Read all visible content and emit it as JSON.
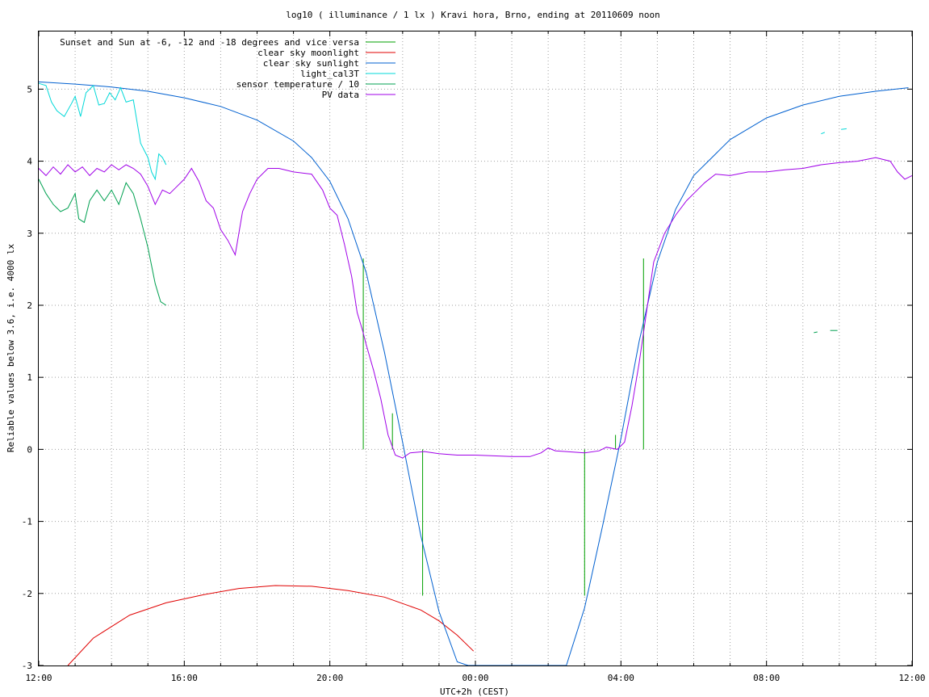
{
  "chart_data": {
    "type": "line",
    "title": "log10 ( illuminance / 1 lx ) Kravi hora, Brno, ending at 20110609 noon",
    "xlabel": "UTC+2h (CEST)",
    "ylabel": "Reliable values below 3.6, i.e. 4000 lx",
    "xlim": [
      12,
      36
    ],
    "ylim": [
      -3,
      5.8
    ],
    "grid": true,
    "legend_position": "top-left",
    "x_ticks": [
      {
        "value": 12,
        "label": "12:00"
      },
      {
        "value": 16,
        "label": "16:00"
      },
      {
        "value": 20,
        "label": "20:00"
      },
      {
        "value": 24,
        "label": "00:00"
      },
      {
        "value": 28,
        "label": "04:00"
      },
      {
        "value": 32,
        "label": "08:00"
      },
      {
        "value": 36,
        "label": "12:00"
      }
    ],
    "y_ticks": [
      {
        "value": 5,
        "label": "5"
      },
      {
        "value": 4,
        "label": "4"
      },
      {
        "value": 3,
        "label": "3"
      },
      {
        "value": 2,
        "label": "2"
      },
      {
        "value": 1,
        "label": "1"
      },
      {
        "value": 0,
        "label": "0"
      },
      {
        "value": -1,
        "label": "-1"
      },
      {
        "value": -2,
        "label": "-2"
      },
      {
        "value": -3,
        "label": "-3"
      }
    ],
    "series": [
      {
        "name": "Sunset and Sun at -6, -12 and -18 degrees and vice versa",
        "color": "#00a000",
        "style": "impulses",
        "points": [
          [
            20.92,
            2.65
          ],
          [
            21.72,
            0.5
          ],
          [
            22.55,
            -2.03
          ],
          [
            27.0,
            -2.03
          ],
          [
            27.85,
            0.2
          ],
          [
            28.62,
            2.65
          ]
        ]
      },
      {
        "name": "clear sky moonlight",
        "color": "#e00000",
        "points": [
          [
            12.8,
            -3.0
          ],
          [
            13.5,
            -2.62
          ],
          [
            14.5,
            -2.3
          ],
          [
            15.5,
            -2.13
          ],
          [
            16.5,
            -2.02
          ],
          [
            17.5,
            -1.93
          ],
          [
            18.5,
            -1.89
          ],
          [
            19.5,
            -1.9
          ],
          [
            20.5,
            -1.96
          ],
          [
            21.5,
            -2.05
          ],
          [
            22.5,
            -2.23
          ],
          [
            23.0,
            -2.38
          ],
          [
            23.5,
            -2.58
          ],
          [
            23.95,
            -2.8
          ]
        ]
      },
      {
        "name": "clear sky sunlight",
        "color": "#0060d0",
        "points": [
          [
            12.0,
            5.1
          ],
          [
            13.0,
            5.07
          ],
          [
            14.0,
            5.03
          ],
          [
            15.0,
            4.97
          ],
          [
            16.0,
            4.88
          ],
          [
            17.0,
            4.76
          ],
          [
            18.0,
            4.57
          ],
          [
            19.0,
            4.28
          ],
          [
            19.5,
            4.05
          ],
          [
            20.0,
            3.72
          ],
          [
            20.5,
            3.2
          ],
          [
            21.0,
            2.45
          ],
          [
            21.5,
            1.35
          ],
          [
            22.0,
            0.1
          ],
          [
            22.5,
            -1.2
          ],
          [
            23.0,
            -2.25
          ],
          [
            23.5,
            -2.95
          ],
          [
            23.8,
            -3.2
          ],
          [
            25.5,
            -3.2
          ],
          [
            26.5,
            -3.0
          ],
          [
            27.0,
            -2.2
          ],
          [
            27.5,
            -1.05
          ],
          [
            28.0,
            0.15
          ],
          [
            28.5,
            1.5
          ],
          [
            29.0,
            2.6
          ],
          [
            29.5,
            3.33
          ],
          [
            30.0,
            3.8
          ],
          [
            31.0,
            4.3
          ],
          [
            32.0,
            4.6
          ],
          [
            33.0,
            4.78
          ],
          [
            34.0,
            4.9
          ],
          [
            35.0,
            4.97
          ],
          [
            35.9,
            5.02
          ]
        ]
      },
      {
        "name": "light_cal3T",
        "color": "#00d8d8",
        "points": [
          [
            12.0,
            5.08
          ],
          [
            12.2,
            5.05
          ],
          [
            12.35,
            4.82
          ],
          [
            12.5,
            4.7
          ],
          [
            12.7,
            4.62
          ],
          [
            12.9,
            4.8
          ],
          [
            13.0,
            4.9
          ],
          [
            13.15,
            4.62
          ],
          [
            13.3,
            4.95
          ],
          [
            13.5,
            5.05
          ],
          [
            13.65,
            4.78
          ],
          [
            13.8,
            4.8
          ],
          [
            13.95,
            4.95
          ],
          [
            14.1,
            4.85
          ],
          [
            14.25,
            5.02
          ],
          [
            14.4,
            4.82
          ],
          [
            14.6,
            4.85
          ],
          [
            14.8,
            4.25
          ],
          [
            15.0,
            4.05
          ],
          [
            15.1,
            3.85
          ],
          [
            15.2,
            3.75
          ],
          [
            15.3,
            4.1
          ],
          [
            15.4,
            4.05
          ],
          [
            15.5,
            3.95
          ]
        ]
      },
      {
        "name": "light_cal3T",
        "color": "#00d8d8",
        "points": [
          [
            33.5,
            4.38
          ],
          [
            33.6,
            4.4
          ]
        ]
      },
      {
        "name": "light_cal3T",
        "color": "#00d8d8",
        "points": [
          [
            34.05,
            4.44
          ],
          [
            34.2,
            4.45
          ]
        ]
      },
      {
        "name": "sensor temperature / 10",
        "color": "#00a050",
        "points": [
          [
            12.0,
            3.75
          ],
          [
            12.2,
            3.55
          ],
          [
            12.4,
            3.4
          ],
          [
            12.6,
            3.3
          ],
          [
            12.8,
            3.35
          ],
          [
            13.0,
            3.55
          ],
          [
            13.1,
            3.2
          ],
          [
            13.25,
            3.15
          ],
          [
            13.4,
            3.45
          ],
          [
            13.6,
            3.6
          ],
          [
            13.8,
            3.45
          ],
          [
            14.0,
            3.6
          ],
          [
            14.2,
            3.4
          ],
          [
            14.4,
            3.7
          ],
          [
            14.6,
            3.55
          ],
          [
            14.8,
            3.2
          ],
          [
            15.0,
            2.8
          ],
          [
            15.2,
            2.3
          ],
          [
            15.35,
            2.05
          ],
          [
            15.5,
            2.0
          ]
        ]
      },
      {
        "name": "sensor temperature / 10",
        "color": "#00a050",
        "points": [
          [
            33.3,
            1.62
          ],
          [
            33.4,
            1.63
          ]
        ]
      },
      {
        "name": "sensor temperature / 10",
        "color": "#00a050",
        "points": [
          [
            33.75,
            1.65
          ],
          [
            33.95,
            1.65
          ]
        ]
      },
      {
        "name": "PV data",
        "color": "#a000e8",
        "points": [
          [
            12.0,
            3.9
          ],
          [
            12.2,
            3.8
          ],
          [
            12.4,
            3.92
          ],
          [
            12.6,
            3.82
          ],
          [
            12.8,
            3.95
          ],
          [
            13.0,
            3.85
          ],
          [
            13.2,
            3.92
          ],
          [
            13.4,
            3.8
          ],
          [
            13.6,
            3.9
          ],
          [
            13.8,
            3.85
          ],
          [
            14.0,
            3.95
          ],
          [
            14.2,
            3.88
          ],
          [
            14.4,
            3.95
          ],
          [
            14.6,
            3.9
          ],
          [
            14.8,
            3.82
          ],
          [
            15.0,
            3.65
          ],
          [
            15.2,
            3.4
          ],
          [
            15.4,
            3.6
          ],
          [
            15.6,
            3.55
          ],
          [
            15.8,
            3.65
          ],
          [
            16.0,
            3.75
          ],
          [
            16.2,
            3.9
          ],
          [
            16.4,
            3.72
          ],
          [
            16.6,
            3.45
          ],
          [
            16.8,
            3.35
          ],
          [
            17.0,
            3.05
          ],
          [
            17.2,
            2.9
          ],
          [
            17.4,
            2.7
          ],
          [
            17.6,
            3.3
          ],
          [
            17.8,
            3.55
          ],
          [
            18.0,
            3.75
          ],
          [
            18.3,
            3.9
          ],
          [
            18.6,
            3.9
          ],
          [
            19.0,
            3.85
          ],
          [
            19.5,
            3.82
          ],
          [
            19.8,
            3.6
          ],
          [
            20.0,
            3.35
          ],
          [
            20.2,
            3.25
          ],
          [
            20.4,
            2.85
          ],
          [
            20.6,
            2.4
          ],
          [
            20.75,
            1.9
          ],
          [
            20.9,
            1.65
          ],
          [
            21.0,
            1.45
          ],
          [
            21.2,
            1.1
          ],
          [
            21.4,
            0.7
          ],
          [
            21.6,
            0.2
          ],
          [
            21.8,
            -0.08
          ],
          [
            22.0,
            -0.12
          ],
          [
            22.2,
            -0.05
          ],
          [
            22.6,
            -0.03
          ],
          [
            23.0,
            -0.06
          ],
          [
            23.5,
            -0.08
          ],
          [
            24.0,
            -0.08
          ],
          [
            24.5,
            -0.09
          ],
          [
            25.0,
            -0.1
          ],
          [
            25.5,
            -0.1
          ],
          [
            25.8,
            -0.05
          ],
          [
            26.0,
            0.02
          ],
          [
            26.2,
            -0.02
          ],
          [
            26.5,
            -0.03
          ],
          [
            27.0,
            -0.05
          ],
          [
            27.4,
            -0.02
          ],
          [
            27.6,
            0.03
          ],
          [
            27.9,
            0.0
          ],
          [
            28.1,
            0.1
          ],
          [
            28.3,
            0.6
          ],
          [
            28.5,
            1.2
          ],
          [
            28.7,
            1.9
          ],
          [
            28.9,
            2.6
          ],
          [
            29.2,
            3.0
          ],
          [
            29.5,
            3.25
          ],
          [
            29.8,
            3.45
          ],
          [
            30.0,
            3.55
          ],
          [
            30.3,
            3.7
          ],
          [
            30.6,
            3.82
          ],
          [
            31.0,
            3.8
          ],
          [
            31.5,
            3.85
          ],
          [
            32.0,
            3.85
          ],
          [
            32.5,
            3.88
          ],
          [
            33.0,
            3.9
          ],
          [
            33.5,
            3.95
          ],
          [
            34.0,
            3.98
          ],
          [
            34.5,
            4.0
          ],
          [
            35.0,
            4.05
          ],
          [
            35.4,
            4.0
          ],
          [
            35.6,
            3.85
          ],
          [
            35.8,
            3.75
          ],
          [
            36.0,
            3.8
          ]
        ]
      }
    ]
  }
}
